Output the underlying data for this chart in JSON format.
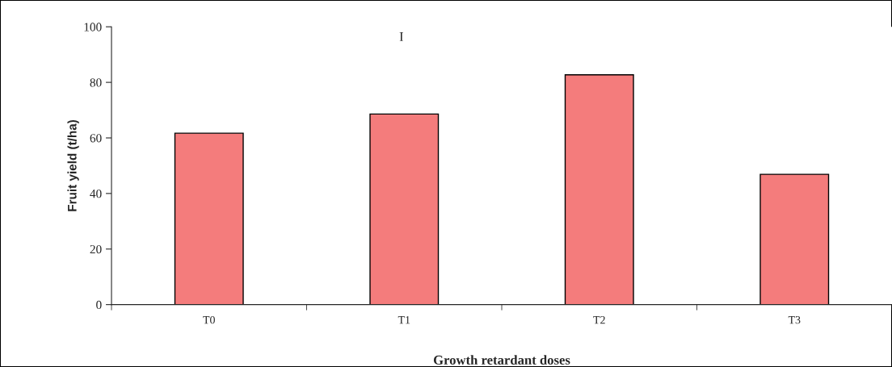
{
  "chart_data": {
    "type": "bar",
    "xlabel": "Growth retardant doses",
    "ylabel": "Fruit yield (t/ha)",
    "categories": [
      "T0",
      "T1",
      "T2",
      "T3"
    ],
    "values": [
      61.7,
      68.6,
      82.7,
      46.9
    ],
    "color": "#f47c7c",
    "ylim": [
      0,
      100
    ],
    "yticks": [
      0,
      20,
      40,
      60,
      80,
      100
    ],
    "grid": false,
    "legend": false,
    "annotations": [
      "I"
    ]
  }
}
